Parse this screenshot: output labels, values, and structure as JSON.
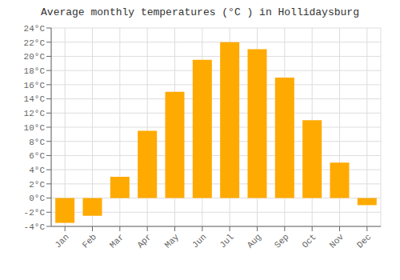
{
  "chart_data": {
    "type": "bar",
    "title": "Average monthly temperatures (°C ) in Hollidaysburg",
    "categories": [
      "Jan",
      "Feb",
      "Mar",
      "Apr",
      "May",
      "Jun",
      "Jul",
      "Aug",
      "Sep",
      "Oct",
      "Nov",
      "Dec"
    ],
    "values": [
      -3.5,
      -2.5,
      3.0,
      9.5,
      15.0,
      19.5,
      22.0,
      21.0,
      17.0,
      11.0,
      5.0,
      -1.0
    ],
    "color": "#FFAA00",
    "ylim": [
      -4,
      24
    ],
    "yticks": [
      {
        "value": -4,
        "label": "-4°C"
      },
      {
        "value": -2,
        "label": "-2°C"
      },
      {
        "value": 0,
        "label": "0°C"
      },
      {
        "value": 2,
        "label": "2°C"
      },
      {
        "value": 4,
        "label": "4°C"
      },
      {
        "value": 6,
        "label": "6°C"
      },
      {
        "value": 8,
        "label": "8°C"
      },
      {
        "value": 10,
        "label": "10°C"
      },
      {
        "value": 12,
        "label": "12°C"
      },
      {
        "value": 14,
        "label": "14°C"
      },
      {
        "value": 16,
        "label": "16°C"
      },
      {
        "value": 18,
        "label": "18°C"
      },
      {
        "value": 20,
        "label": "20°C"
      },
      {
        "value": 22,
        "label": "22°C"
      },
      {
        "value": 24,
        "label": "24°C"
      }
    ],
    "grid": true
  }
}
